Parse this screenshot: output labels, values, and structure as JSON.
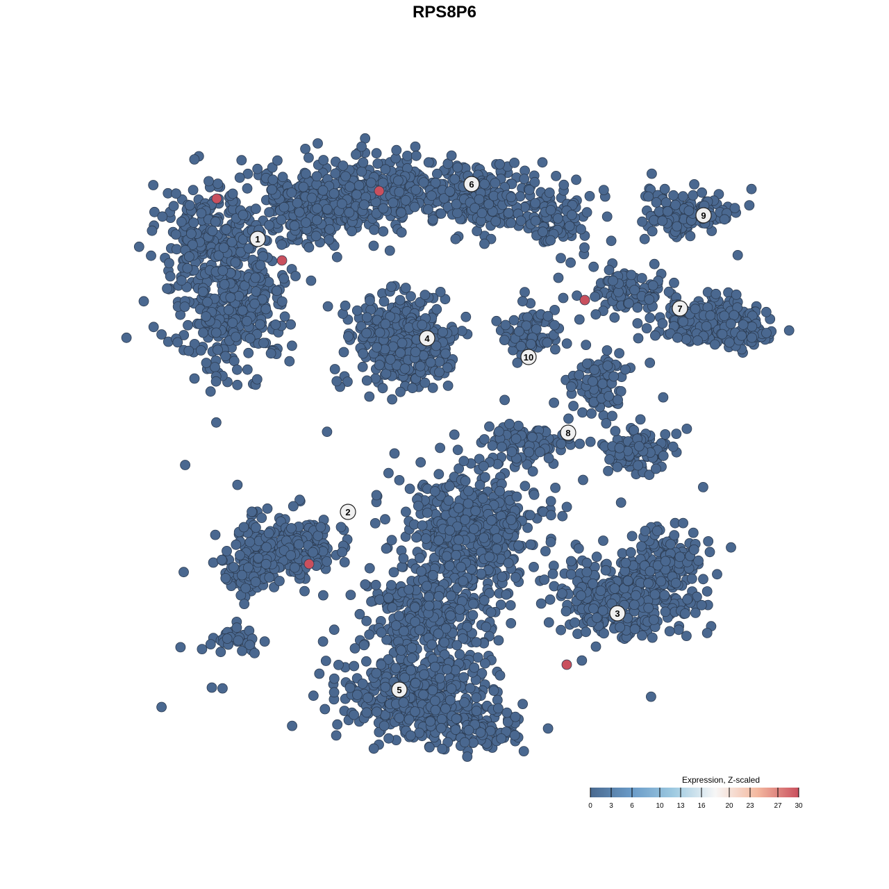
{
  "chart_data": {
    "type": "scatter",
    "title": "RPS8P6",
    "xlabel": "",
    "ylabel": "",
    "grid": false,
    "point_color_low": "#4a6890",
    "clusters": [
      {
        "label": "1",
        "x": -26.9,
        "y": 29.6
      },
      {
        "label": "6",
        "x": 3.9,
        "y": 37.5
      },
      {
        "label": "9",
        "x": 37.3,
        "y": 33.0
      },
      {
        "label": "7",
        "x": 33.9,
        "y": 19.6
      },
      {
        "label": "4",
        "x": -2.5,
        "y": 15.3
      },
      {
        "label": "10",
        "x": 12.1,
        "y": 12.6
      },
      {
        "label": "8",
        "x": 17.8,
        "y": 1.7
      },
      {
        "label": "2",
        "x": -13.9,
        "y": -9.7
      },
      {
        "label": "3",
        "x": 24.9,
        "y": -24.3
      },
      {
        "label": "5",
        "x": -6.5,
        "y": -35.3
      }
    ],
    "high_expression_cells": [
      {
        "x": -32.8,
        "y": 35.4,
        "value": 30
      },
      {
        "x": -9.4,
        "y": 36.5,
        "value": 30
      },
      {
        "x": -23.4,
        "y": 26.5,
        "value": 30
      },
      {
        "x": 20.2,
        "y": 20.8,
        "value": 30
      },
      {
        "x": -19.5,
        "y": -17.2,
        "value": 30
      },
      {
        "x": 17.6,
        "y": -31.7,
        "value": 30
      }
    ],
    "other_cells_value": 0,
    "legend": {
      "title": "Expression, Z-scaled",
      "placement": "bottom-right",
      "range": [
        0,
        30
      ],
      "ticks": [
        "0",
        "3",
        "6",
        "10",
        "13",
        "16",
        "20",
        "23",
        "27",
        "30"
      ],
      "tick_values": [
        0,
        3,
        6,
        10,
        13,
        16,
        20,
        23,
        27,
        30
      ],
      "colors": [
        "#4a6a90",
        "#6a9bc8",
        "#9ecae1",
        "#f7f7f7",
        "#f4b9a0",
        "#c9505e"
      ]
    }
  }
}
